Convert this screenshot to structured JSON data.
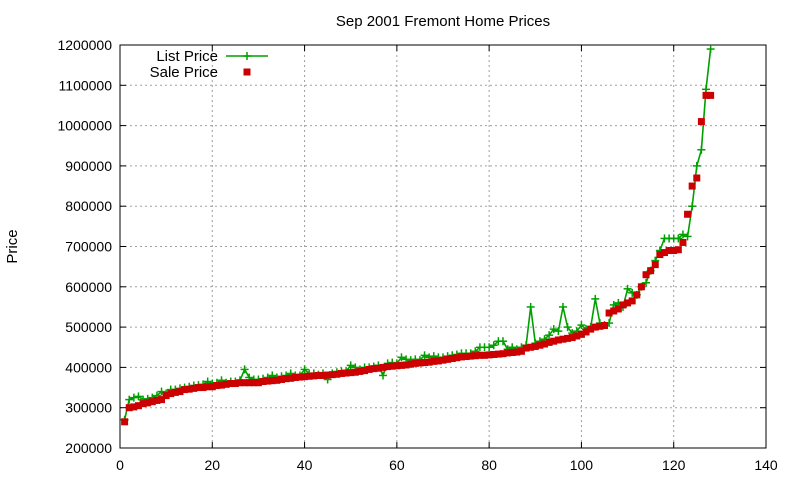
{
  "chart_data": {
    "type": "line",
    "title": "Sep 2001 Fremont Home Prices",
    "xlabel": "",
    "ylabel": "Price",
    "xlim": [
      0,
      140
    ],
    "ylim": [
      200000,
      1200000
    ],
    "xticks": [
      0,
      20,
      40,
      60,
      80,
      100,
      120,
      140
    ],
    "yticks": [
      200000,
      300000,
      400000,
      500000,
      600000,
      700000,
      800000,
      900000,
      1000000,
      1100000,
      1200000
    ],
    "grid": true,
    "legend_position": "top-left",
    "series": [
      {
        "name": "List Price",
        "style": "line-plus",
        "color": "#00a000",
        "x": [
          1,
          2,
          3,
          4,
          5,
          6,
          7,
          8,
          9,
          10,
          11,
          12,
          13,
          14,
          15,
          16,
          17,
          18,
          19,
          20,
          21,
          22,
          23,
          24,
          25,
          26,
          27,
          28,
          29,
          30,
          31,
          32,
          33,
          34,
          35,
          36,
          37,
          38,
          39,
          40,
          41,
          42,
          43,
          44,
          45,
          46,
          47,
          48,
          49,
          50,
          51,
          52,
          53,
          54,
          55,
          56,
          57,
          58,
          59,
          60,
          61,
          62,
          63,
          64,
          65,
          66,
          67,
          68,
          69,
          70,
          71,
          72,
          73,
          74,
          75,
          76,
          77,
          78,
          79,
          80,
          81,
          82,
          83,
          84,
          85,
          86,
          87,
          88,
          89,
          90,
          91,
          92,
          93,
          94,
          95,
          96,
          97,
          98,
          99,
          100,
          101,
          102,
          103,
          104,
          105,
          106,
          107,
          108,
          109,
          110,
          111,
          112,
          113,
          114,
          115,
          116,
          117,
          118,
          119,
          120,
          121,
          122,
          123,
          124,
          125,
          126,
          127,
          128
        ],
        "y": [
          270000,
          320000,
          325000,
          328000,
          320000,
          322000,
          325000,
          330000,
          340000,
          335000,
          345000,
          345000,
          348000,
          350000,
          352000,
          355000,
          356000,
          358000,
          365000,
          360000,
          362000,
          368000,
          362000,
          365000,
          365000,
          368000,
          395000,
          375000,
          370000,
          370000,
          372000,
          375000,
          380000,
          375000,
          378000,
          380000,
          385000,
          380000,
          380000,
          395000,
          385000,
          385000,
          382000,
          385000,
          370000,
          385000,
          388000,
          390000,
          390000,
          405000,
          400000,
          395000,
          400000,
          400000,
          402000,
          405000,
          380000,
          410000,
          412000,
          410000,
          425000,
          420000,
          418000,
          420000,
          418000,
          430000,
          425000,
          428000,
          425000,
          425000,
          428000,
          430000,
          432000,
          435000,
          435000,
          435000,
          440000,
          450000,
          450000,
          450000,
          455000,
          465000,
          465000,
          445000,
          450000,
          445000,
          450000,
          455000,
          550000,
          460000,
          465000,
          470000,
          480000,
          495000,
          490000,
          550000,
          500000,
          485000,
          490000,
          505000,
          495000,
          500000,
          570000,
          510000,
          505000,
          510000,
          555000,
          560000,
          550000,
          595000,
          585000,
          580000,
          600000,
          610000,
          640000,
          665000,
          690000,
          720000,
          720000,
          720000,
          720000,
          730000,
          725000,
          800000,
          900000,
          940000,
          1090000,
          1190000
        ]
      },
      {
        "name": "Sale Price",
        "style": "square-points",
        "color": "#cc0000",
        "x": [
          1,
          2,
          3,
          4,
          5,
          6,
          7,
          8,
          9,
          10,
          11,
          12,
          13,
          14,
          15,
          16,
          17,
          18,
          19,
          20,
          21,
          22,
          23,
          24,
          25,
          26,
          27,
          28,
          29,
          30,
          31,
          32,
          33,
          34,
          35,
          36,
          37,
          38,
          39,
          40,
          41,
          42,
          43,
          44,
          45,
          46,
          47,
          48,
          49,
          50,
          51,
          52,
          53,
          54,
          55,
          56,
          57,
          58,
          59,
          60,
          61,
          62,
          63,
          64,
          65,
          66,
          67,
          68,
          69,
          70,
          71,
          72,
          73,
          74,
          75,
          76,
          77,
          78,
          79,
          80,
          81,
          82,
          83,
          84,
          85,
          86,
          87,
          88,
          89,
          90,
          91,
          92,
          93,
          94,
          95,
          96,
          97,
          98,
          99,
          100,
          101,
          102,
          103,
          104,
          105,
          106,
          107,
          108,
          109,
          110,
          111,
          112,
          113,
          114,
          115,
          116,
          117,
          118,
          119,
          120,
          121,
          122,
          123,
          124,
          125,
          126,
          127,
          128
        ],
        "y": [
          265000,
          300000,
          302000,
          305000,
          310000,
          312000,
          315000,
          318000,
          320000,
          330000,
          335000,
          338000,
          340000,
          345000,
          346000,
          348000,
          350000,
          350000,
          352000,
          352000,
          355000,
          356000,
          358000,
          360000,
          360000,
          362000,
          362000,
          362000,
          362000,
          362000,
          365000,
          366000,
          367000,
          368000,
          370000,
          372000,
          373000,
          375000,
          376000,
          377000,
          378000,
          379000,
          380000,
          380000,
          381000,
          382000,
          383000,
          385000,
          386000,
          387000,
          388000,
          390000,
          392000,
          395000,
          397000,
          398000,
          400000,
          402000,
          403000,
          404000,
          405000,
          406000,
          408000,
          410000,
          411000,
          412000,
          413000,
          415000,
          416000,
          418000,
          420000,
          422000,
          424000,
          426000,
          427000,
          428000,
          429000,
          430000,
          430000,
          431000,
          432000,
          433000,
          434000,
          436000,
          437000,
          438000,
          440000,
          448000,
          450000,
          452000,
          455000,
          458000,
          462000,
          465000,
          468000,
          470000,
          472000,
          474000,
          478000,
          482000,
          488000,
          495000,
          500000,
          502000,
          504000,
          535000,
          540000,
          545000,
          555000,
          560000,
          565000,
          580000,
          600000,
          630000,
          640000,
          655000,
          680000,
          685000,
          690000,
          690000,
          692000,
          710000,
          780000,
          850000,
          870000,
          1010000,
          1075000,
          1075000
        ]
      }
    ]
  }
}
